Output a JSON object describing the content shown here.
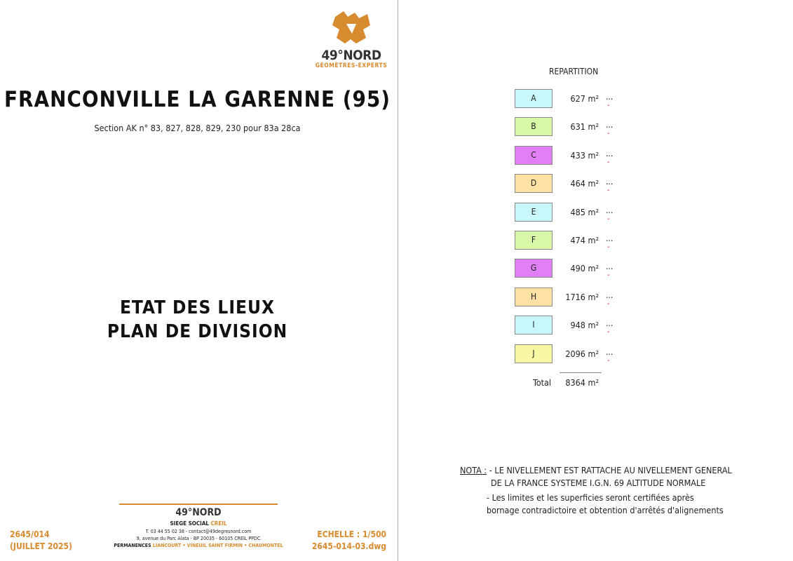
{
  "logo": {
    "name": "49°NORD",
    "tagline": "GÉOMÈTRES-EXPERTS",
    "color": "#d88a2e"
  },
  "title": "FRANCONVILLE LA GARENNE (95)",
  "subtitle": "Section  AK n° 83, 827, 828, 829, 230 pour 83a 28ca",
  "doc_title": {
    "line1": "ETAT  DES  LIEUX",
    "line2": "PLAN DE DIVISION"
  },
  "footer": {
    "left_ref": "2645/014",
    "left_date": "(JUILLET 2025)",
    "company": "49°NORD",
    "siege_label": "SIEGE SOCIAL",
    "siege_city": "CREIL",
    "contact": "T. 03 44 55 02 38 - contact@49degresnord.com",
    "address": "9, avenue du Parc Alata - BP 20035 - 60105 CREIL PPDC",
    "permanences_label": "PERMANENCES",
    "permanences": "LIANCOURT • VINEUIL SAINT FIRMIN • CHAUMONTEL",
    "scale": "ECHELLE : 1/500",
    "file": "2645-014-03.dwg"
  },
  "repartition": {
    "title": "REPARTITION",
    "lots": [
      {
        "label": "A",
        "area": "627 m²",
        "color": "#c8f8fc"
      },
      {
        "label": "B",
        "area": "631 m²",
        "color": "#d8f8a8"
      },
      {
        "label": "C",
        "area": "433 m²",
        "color": "#e080f4"
      },
      {
        "label": "D",
        "area": "464 m²",
        "color": "#fde2a4"
      },
      {
        "label": "E",
        "area": "485 m²",
        "color": "#c8f8fc"
      },
      {
        "label": "F",
        "area": "474 m²",
        "color": "#d8f8a8"
      },
      {
        "label": "G",
        "area": "490 m²",
        "color": "#e080f4"
      },
      {
        "label": "H",
        "area": "1716 m²",
        "color": "#fde2a4"
      },
      {
        "label": "I",
        "area": "948 m²",
        "color": "#c8f8fc"
      },
      {
        "label": "J",
        "area": "2096 m²",
        "color": "#f8f8a4"
      }
    ],
    "dots": "...",
    "dash": "-",
    "total_label": "Total",
    "total": "8364 m²"
  },
  "nota": {
    "label": "NOTA :",
    "line1": "- LE NIVELLEMENT EST RATTACHE AU NIVELLEMENT GENERAL",
    "line2": "DE LA FRANCE SYSTEME  I.G.N. 69  ALTITUDE NORMALE",
    "line3": "- Les limites et les superficies seront certifiées après",
    "line4": "bornage contradictoire et obtention d'arrêtés d'alignements"
  }
}
